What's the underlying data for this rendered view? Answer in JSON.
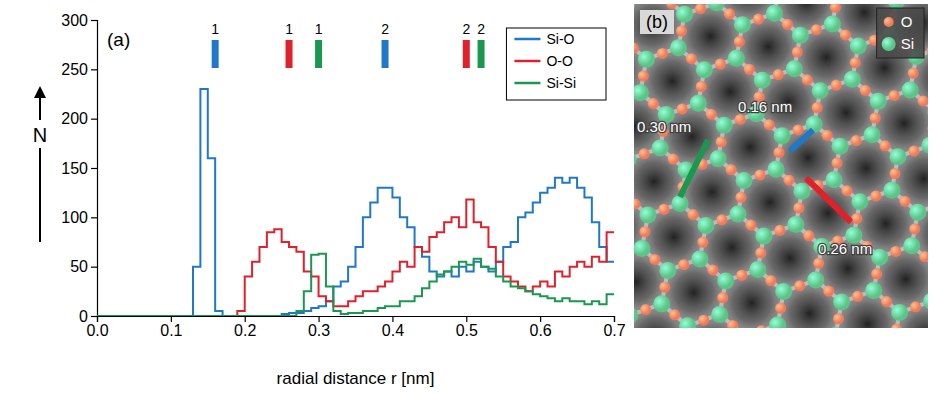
{
  "chart_data": [
    {
      "type": "histogram",
      "panel_label": "(a)",
      "x_label": "radial distance r [nm]",
      "y_label": "N",
      "xlim": [
        0,
        0.7
      ],
      "ylim": [
        0,
        300
      ],
      "xticks": [
        {
          "value": 0,
          "label": "0.0"
        },
        0.1,
        0.2,
        0.3,
        0.4,
        0.5,
        0.6,
        0.7
      ],
      "yticks": [
        0,
        50,
        100,
        150,
        200,
        250,
        300
      ],
      "legend": "top-right",
      "bins": [
        0,
        0.01,
        0.02,
        0.03,
        0.04,
        0.05,
        0.06,
        0.07,
        0.08,
        0.09,
        0.1,
        0.11,
        0.12,
        0.13,
        0.14,
        0.15,
        0.16,
        0.17,
        0.18,
        0.19,
        0.2,
        0.21,
        0.22,
        0.23,
        0.24,
        0.25,
        0.26,
        0.27,
        0.28,
        0.29,
        0.3,
        0.31,
        0.32,
        0.33,
        0.34,
        0.35,
        0.36,
        0.37,
        0.38,
        0.39,
        0.4,
        0.41,
        0.42,
        0.43,
        0.44,
        0.45,
        0.46,
        0.47,
        0.48,
        0.49,
        0.5,
        0.51,
        0.52,
        0.53,
        0.54,
        0.55,
        0.56,
        0.57,
        0.58,
        0.59,
        0.6,
        0.61,
        0.62,
        0.63,
        0.64,
        0.65,
        0.66,
        0.67,
        0.68,
        0.69,
        0.7
      ],
      "series": [
        {
          "name": "Si-O",
          "color": "#1f78c8",
          "values": [
            0,
            0,
            0,
            0,
            0,
            0,
            0,
            0,
            0,
            0,
            0,
            0,
            0,
            50,
            230,
            160,
            5,
            0,
            0,
            0,
            0,
            0,
            0,
            0,
            0,
            2,
            3,
            3,
            5,
            8,
            10,
            15,
            30,
            35,
            50,
            70,
            100,
            115,
            130,
            130,
            120,
            100,
            90,
            70,
            60,
            45,
            40,
            45,
            40,
            50,
            45,
            55,
            50,
            45,
            55,
            70,
            75,
            100,
            105,
            115,
            125,
            130,
            140,
            135,
            140,
            130,
            120,
            95,
            70,
            55
          ],
          "peaks": [
            0.16,
            0.39
          ],
          "peak_labels": [
            "1",
            "2"
          ]
        },
        {
          "name": "O-O",
          "color": "#e0202a",
          "values": [
            0,
            0,
            0,
            0,
            0,
            0,
            0,
            0,
            0,
            0,
            0,
            0,
            0,
            0,
            0,
            0,
            0,
            0,
            0,
            5,
            40,
            55,
            70,
            85,
            88,
            75,
            70,
            65,
            45,
            40,
            20,
            15,
            10,
            10,
            15,
            20,
            25,
            25,
            30,
            35,
            45,
            55,
            50,
            70,
            65,
            80,
            85,
            95,
            100,
            90,
            118,
            95,
            90,
            70,
            55,
            40,
            35,
            30,
            25,
            30,
            35,
            30,
            45,
            40,
            50,
            55,
            50,
            60,
            55,
            85
          ],
          "peaks": [
            0.26,
            0.5
          ],
          "peak_labels": [
            "1",
            "2"
          ]
        },
        {
          "name": "Si-Si",
          "color": "#1a9850",
          "values": [
            0,
            0,
            0,
            0,
            0,
            0,
            0,
            0,
            0,
            0,
            0,
            0,
            0,
            0,
            0,
            0,
            0,
            0,
            0,
            0,
            0,
            0,
            0,
            0,
            0,
            0,
            0,
            5,
            25,
            62,
            63,
            30,
            5,
            2,
            3,
            3,
            5,
            5,
            8,
            10,
            10,
            15,
            15,
            20,
            28,
            35,
            42,
            45,
            50,
            55,
            52,
            58,
            50,
            48,
            40,
            35,
            30,
            28,
            25,
            22,
            20,
            18,
            15,
            18,
            15,
            15,
            12,
            15,
            12,
            22
          ],
          "peaks": [
            0.3,
            0.52
          ],
          "peak_labels": [
            "1",
            "2"
          ]
        }
      ]
    },
    {
      "type": "diagram",
      "panel_label": "(b)",
      "legend": "top-right",
      "series": [
        {
          "name": "O",
          "color": "#f07a5a"
        },
        {
          "name": "Si",
          "color": "#5cc487"
        }
      ],
      "annotations": [
        {
          "text": "0.30 nm",
          "color": "#1a9850"
        },
        {
          "text": "0.16 nm",
          "color": "#1f78c8"
        },
        {
          "text": "0.26 nm",
          "color": "#e0202a"
        }
      ]
    }
  ]
}
